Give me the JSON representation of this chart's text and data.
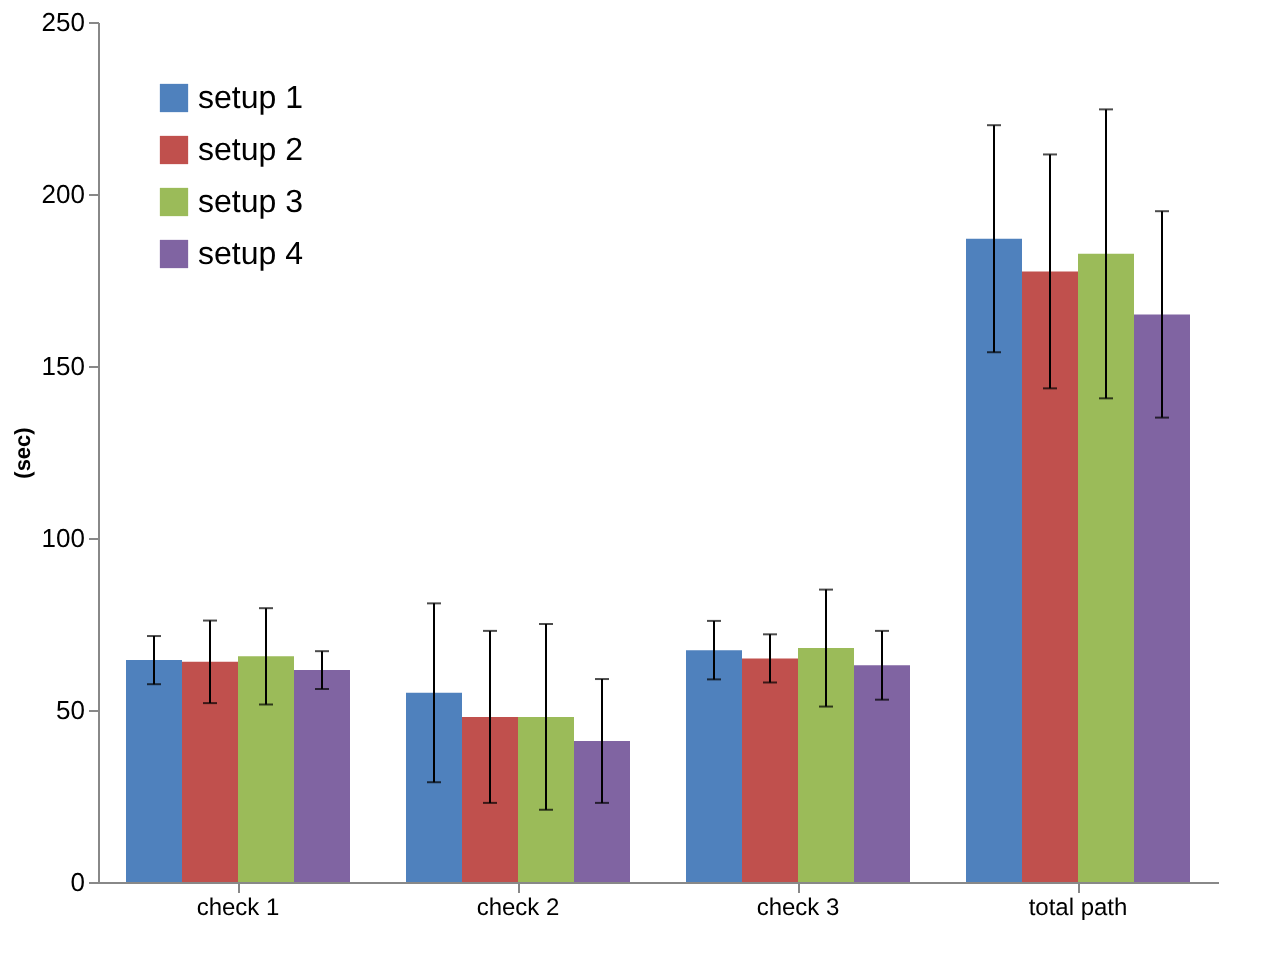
{
  "chart_data": {
    "type": "bar",
    "ylabel": "(sec)",
    "categories": [
      "check 1",
      "check 2",
      "check 3",
      "total path"
    ],
    "series": [
      {
        "name": "setup 1",
        "color": "#4f81bd",
        "values": [
          64.5,
          55,
          67.4,
          187
        ],
        "errors": [
          7,
          26,
          8.5,
          33
        ]
      },
      {
        "name": "setup 2",
        "color": "#c0504d",
        "values": [
          64,
          48,
          65,
          177.5
        ],
        "errors": [
          12,
          25,
          7,
          34
        ]
      },
      {
        "name": "setup 3",
        "color": "#9bbb59",
        "values": [
          65.6,
          48,
          68,
          182.6
        ],
        "errors": [
          14,
          27,
          17,
          42
        ]
      },
      {
        "name": "setup 4",
        "color": "#8064a2",
        "values": [
          61.6,
          41,
          63,
          165
        ],
        "errors": [
          5.5,
          18,
          10,
          30
        ]
      }
    ],
    "ylim": [
      0,
      250
    ],
    "yticks": [
      0,
      50,
      100,
      150,
      200,
      250
    ],
    "grid": false,
    "legend": "top left"
  }
}
